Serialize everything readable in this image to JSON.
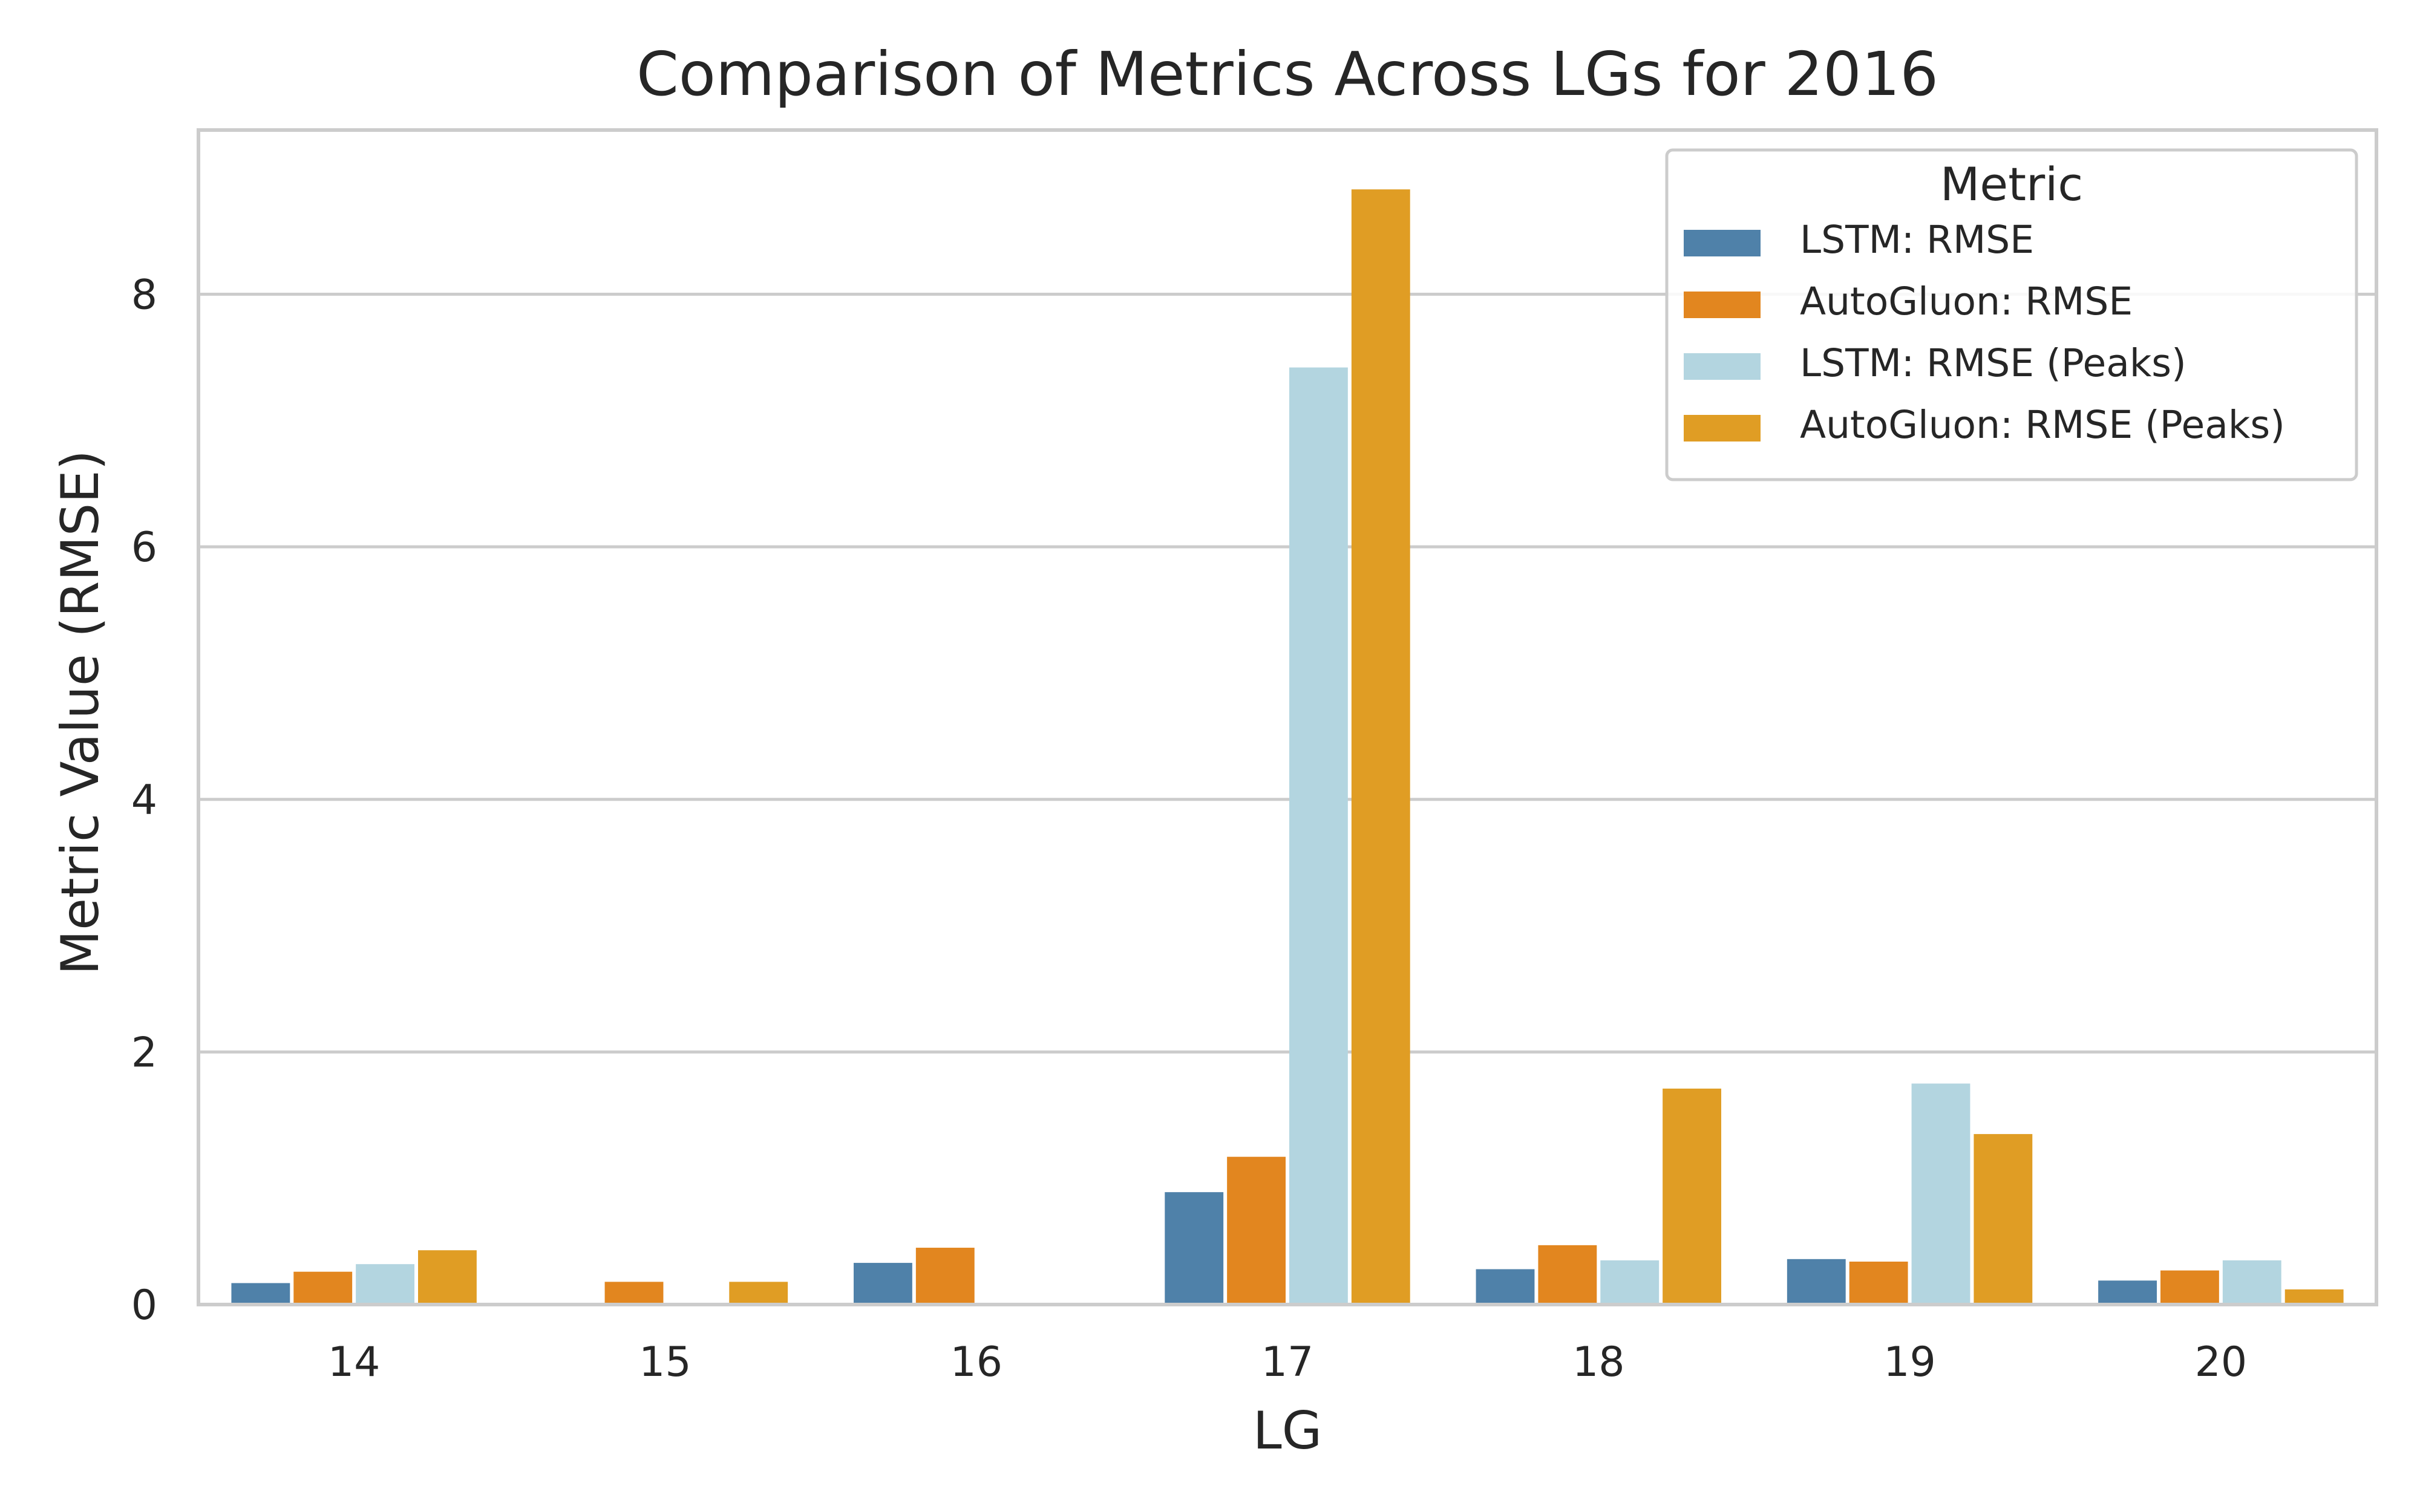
{
  "chart_data": {
    "type": "bar",
    "title": "Comparison of Metrics Across LGs for 2016",
    "xlabel": "LG",
    "ylabel": "Metric Value (RMSE)",
    "categories": [
      "14",
      "15",
      "16",
      "17",
      "18",
      "19",
      "20"
    ],
    "ylim": [
      0,
      9.3
    ],
    "yticks": [
      0,
      2,
      4,
      6,
      8
    ],
    "grid": true,
    "legend": {
      "title": "Metric",
      "placement": "top-right"
    },
    "series": [
      {
        "name": "LSTM: RMSE",
        "color": "#4f81a9",
        "values": [
          0.17,
          null,
          0.33,
          0.89,
          0.28,
          0.36,
          0.19
        ]
      },
      {
        "name": "AutoGluon: RMSE",
        "color": "#e2861f",
        "values": [
          0.26,
          0.18,
          0.45,
          1.17,
          0.47,
          0.34,
          0.27
        ]
      },
      {
        "name": "LSTM: RMSE (Peaks)",
        "color": "#b3d5e0",
        "values": [
          0.32,
          null,
          null,
          7.42,
          0.35,
          1.75,
          0.35
        ]
      },
      {
        "name": "AutoGluon: RMSE (Peaks)",
        "color": "#e09d24",
        "values": [
          0.43,
          0.18,
          null,
          8.83,
          1.71,
          1.35,
          0.12
        ]
      }
    ]
  }
}
